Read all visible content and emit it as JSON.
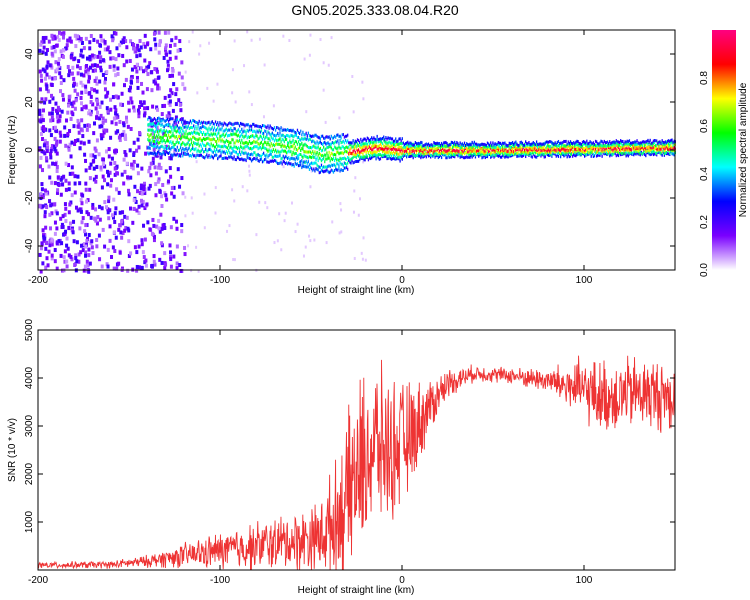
{
  "title": "GN05.2025.333.08.04.R20",
  "chart_data": [
    {
      "type": "heatmap",
      "title": "GN05.2025.333.08.04.R20",
      "xlabel": "Height of straight line (km)",
      "ylabel": "Frequency (Hz)",
      "xlim": [
        -200,
        150
      ],
      "ylim": [
        -50,
        50
      ],
      "xticks": [
        -200,
        -100,
        0,
        100
      ],
      "yticks": [
        -40,
        -20,
        0,
        20,
        40
      ],
      "colorbar": {
        "label": "Normalized spectral amplitude",
        "range": [
          0,
          1
        ],
        "ticks": [
          0.0,
          0.2,
          0.4,
          0.6,
          0.8
        ],
        "colors": [
          "#ffffff",
          "#7a00ff",
          "#0000ff",
          "#00ffff",
          "#00ff00",
          "#ffff00",
          "#ff0000",
          "#ff0080"
        ]
      },
      "description_points": {
        "noise_region_x": [
          -200,
          -120
        ],
        "signal_start_x": -140,
        "signal_track": [
          {
            "x": -140,
            "f": 6
          },
          {
            "x": -120,
            "f": 5
          },
          {
            "x": -100,
            "f": 4
          },
          {
            "x": -80,
            "f": 3
          },
          {
            "x": -60,
            "f": 1
          },
          {
            "x": -45,
            "f": -2
          },
          {
            "x": -30,
            "f": -1
          },
          {
            "x": -15,
            "f": 1
          },
          {
            "x": 0,
            "f": 0
          },
          {
            "x": 50,
            "f": 0
          },
          {
            "x": 100,
            "f": 0.5
          },
          {
            "x": 150,
            "f": 1
          }
        ]
      }
    },
    {
      "type": "line",
      "xlabel": "Height of straight line (km)",
      "ylabel": "SNR (10 * v/v)",
      "xlim": [
        -200,
        150
      ],
      "ylim": [
        0,
        5000
      ],
      "xticks": [
        -200,
        -100,
        0,
        100
      ],
      "yticks": [
        1000,
        2000,
        3000,
        4000,
        5000
      ],
      "color": "#ee3333",
      "series": [
        {
          "name": "SNR",
          "envelope": [
            {
              "x": -200,
              "mean": 100,
              "spread": 80
            },
            {
              "x": -160,
              "mean": 110,
              "spread": 90
            },
            {
              "x": -140,
              "mean": 180,
              "spread": 150
            },
            {
              "x": -120,
              "mean": 300,
              "spread": 300
            },
            {
              "x": -100,
              "mean": 400,
              "spread": 450
            },
            {
              "x": -80,
              "mean": 500,
              "spread": 600
            },
            {
              "x": -60,
              "mean": 600,
              "spread": 700
            },
            {
              "x": -45,
              "mean": 700,
              "spread": 900
            },
            {
              "x": -35,
              "mean": 1100,
              "spread": 1500
            },
            {
              "x": -25,
              "mean": 2000,
              "spread": 2200
            },
            {
              "x": -15,
              "mean": 2600,
              "spread": 2000
            },
            {
              "x": -5,
              "mean": 2500,
              "spread": 1700
            },
            {
              "x": 5,
              "mean": 2800,
              "spread": 1300
            },
            {
              "x": 15,
              "mean": 3400,
              "spread": 700
            },
            {
              "x": 25,
              "mean": 3900,
              "spread": 350
            },
            {
              "x": 40,
              "mean": 4100,
              "spread": 200
            },
            {
              "x": 60,
              "mean": 4050,
              "spread": 200
            },
            {
              "x": 80,
              "mean": 3950,
              "spread": 300
            },
            {
              "x": 95,
              "mean": 3800,
              "spread": 700
            },
            {
              "x": 110,
              "mean": 3600,
              "spread": 900
            },
            {
              "x": 130,
              "mean": 3700,
              "spread": 900
            },
            {
              "x": 150,
              "mean": 3600,
              "spread": 900
            }
          ]
        }
      ]
    }
  ]
}
